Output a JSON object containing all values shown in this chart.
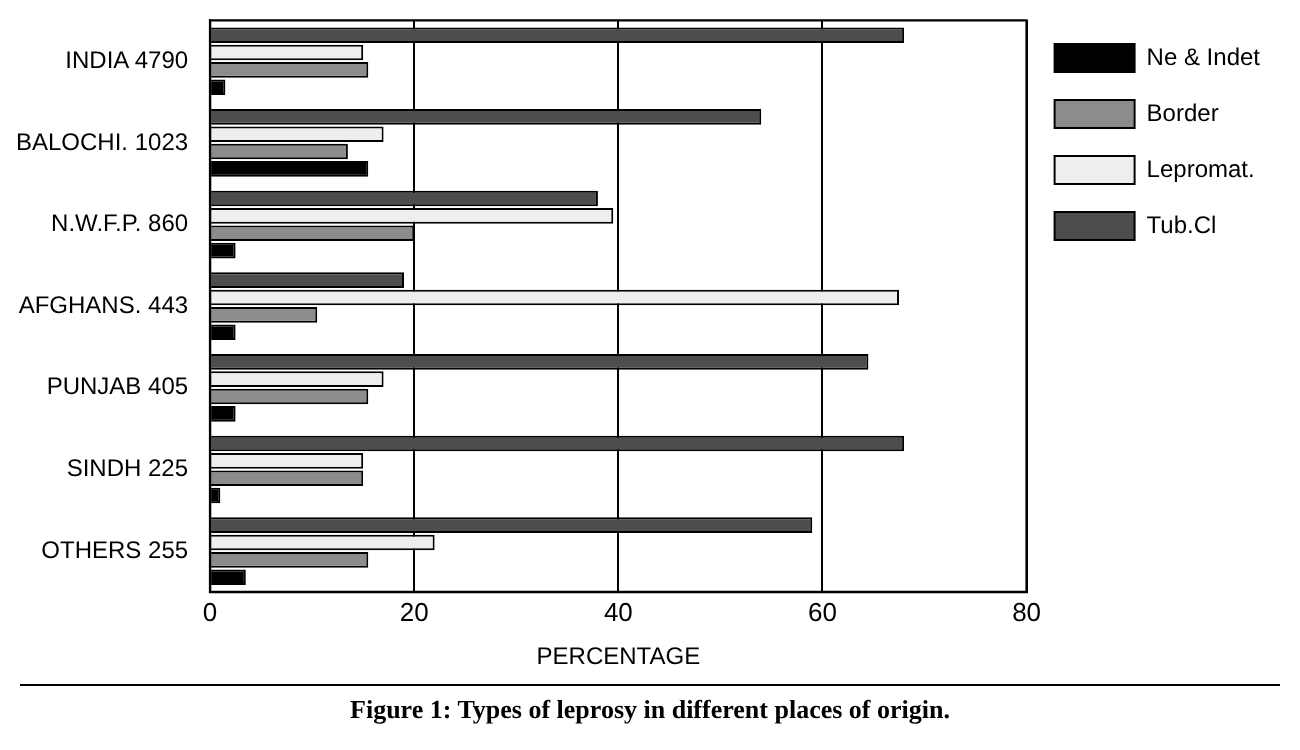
{
  "chart_data": {
    "type": "bar",
    "orientation": "horizontal",
    "xlabel": "PERCENTAGE",
    "categories": [
      "INDIA 4790",
      "BALOCHI. 1023",
      "N.W.F.P. 860",
      "AFGHANS. 443",
      "PUNJAB 405",
      "SINDH 225",
      "OTHERS 255"
    ],
    "series": [
      {
        "name": "Ne & Indet",
        "color": "#000000",
        "values": [
          1.5,
          15.5,
          2.5,
          2.5,
          2.5,
          1,
          3.5
        ]
      },
      {
        "name": "Border",
        "color": "#8c8c8c",
        "values": [
          15.5,
          13.5,
          20,
          10.5,
          15.5,
          15,
          15.5
        ]
      },
      {
        "name": "Lepromat.",
        "color": "#eeeeee",
        "values": [
          15,
          17,
          39.5,
          67.5,
          17,
          15,
          22
        ]
      },
      {
        "name": "Tub.Cl",
        "color": "#4d4d4d",
        "values": [
          68,
          54,
          38,
          19,
          64.5,
          68,
          59
        ]
      }
    ],
    "xlim": [
      0,
      80
    ],
    "xticks": [
      0,
      20,
      40,
      60,
      80
    ],
    "grid": "x",
    "legend": "right",
    "annotations": [
      "Figure 1: Types of leprosy in different places of origin."
    ]
  }
}
